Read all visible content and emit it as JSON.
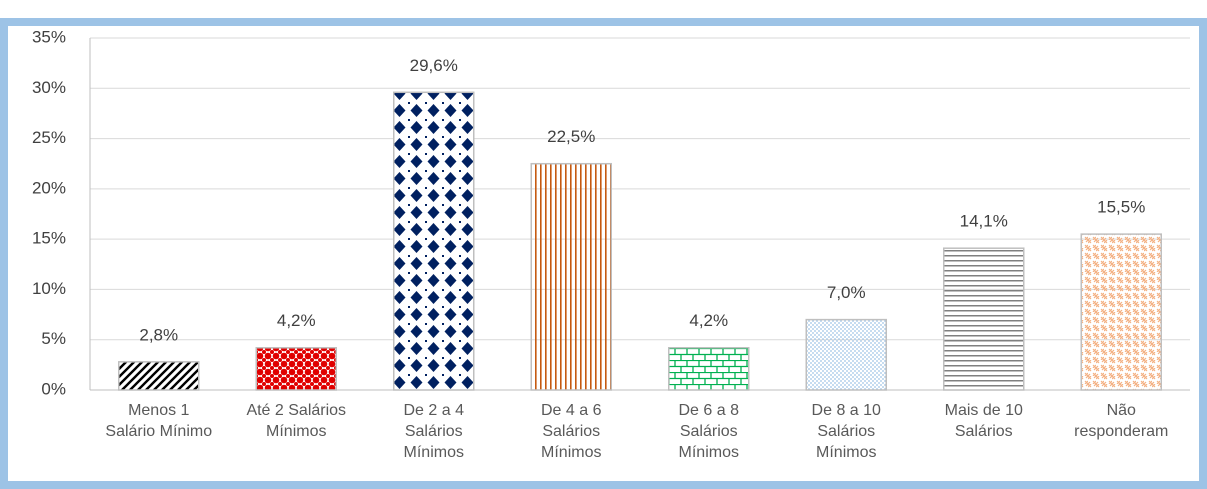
{
  "chart_data": {
    "type": "bar",
    "categories": [
      "Menos 1 Salário Mínimo",
      "Até 2 Salários Mínimos",
      "De 2 a 4 Salários Mínimos",
      "De 4 a 6 Salários Mínimos",
      "De 6 a 8 Salários Mínimos",
      "De 8 a 10 Salários Mínimos",
      "Mais de 10 Salários",
      "Não responderam"
    ],
    "values": [
      2.8,
      4.2,
      29.6,
      22.5,
      4.2,
      7.0,
      14.1,
      15.5
    ],
    "value_labels": [
      "2,8%",
      "4,2%",
      "29,6%",
      "22,5%",
      "4,2%",
      "7,0%",
      "14,1%",
      "15,5%"
    ],
    "colors": [
      "#000000",
      "#e00000",
      "#002060",
      "#c55a11",
      "#00b050",
      "#9dc3e6",
      "#7f7f7f",
      "#f4b183"
    ],
    "ylim": [
      0,
      35
    ],
    "yticks": [
      {
        "value": 0,
        "label": "0%"
      },
      {
        "value": 5,
        "label": "5%"
      },
      {
        "value": 10,
        "label": "10%"
      },
      {
        "value": 15,
        "label": "15%"
      },
      {
        "value": 20,
        "label": "20%"
      },
      {
        "value": 25,
        "label": "25%"
      },
      {
        "value": 30,
        "label": "30%"
      },
      {
        "value": 35,
        "label": "35%"
      }
    ],
    "grid": true
  }
}
